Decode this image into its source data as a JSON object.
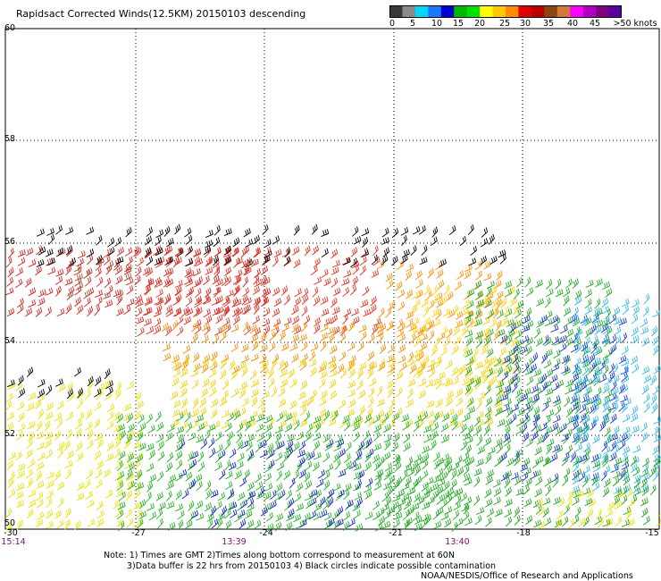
{
  "title": "Rapidsact Corrected Winds(12.5KM) 20150103 descending",
  "colorbar": {
    "colors": [
      "#3a3a3a",
      "#8a8a8a",
      "#00d7ff",
      "#1a78ff",
      "#0000d0",
      "#00b800",
      "#00e000",
      "#ffff00",
      "#ffc800",
      "#ff8c00",
      "#e00000",
      "#b80000",
      "#8b4513",
      "#d07a3a",
      "#ff00ff",
      "#b000c0",
      "#800080",
      "#5a00a0"
    ],
    "labels": [
      "0",
      "5",
      "10",
      "15",
      "20",
      "25",
      "30",
      "35",
      "40",
      "45",
      ">50 knots"
    ]
  },
  "axes": {
    "lat_ticks": [
      "60",
      "58",
      "56",
      "54",
      "52",
      "50"
    ],
    "lon_ticks": [
      "-30",
      "-27",
      "-24",
      "-21",
      "-18",
      "-15"
    ]
  },
  "times": [
    "15:14",
    "13:39",
    "13:40"
  ],
  "notes": {
    "line1": "Note: 1) Times are GMT 2)Times along bottom correspond to measurement at 60N",
    "line2": "3)Data buffer is 22 hrs from 20150103 4) Black circles indicate possible contamination",
    "line3": "NOAA/NESDIS/Office of Research and Applications"
  }
}
